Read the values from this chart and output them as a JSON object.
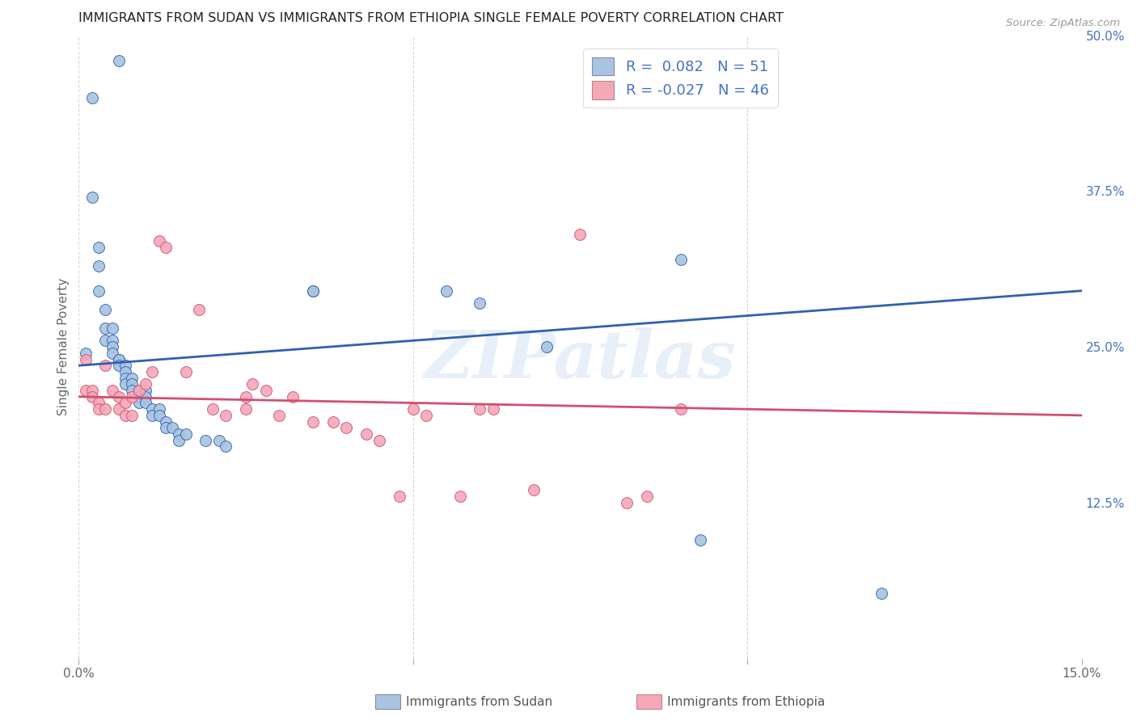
{
  "title": "IMMIGRANTS FROM SUDAN VS IMMIGRANTS FROM ETHIOPIA SINGLE FEMALE POVERTY CORRELATION CHART",
  "source": "Source: ZipAtlas.com",
  "ylabel": "Single Female Poverty",
  "x_min": 0.0,
  "x_max": 0.15,
  "y_min": 0.0,
  "y_max": 0.5,
  "sudan_color": "#a8c4e0",
  "ethiopia_color": "#f4a8b8",
  "sudan_line_color": "#3060b0",
  "ethiopia_line_color": "#d05070",
  "sudan_R": 0.082,
  "sudan_N": 51,
  "ethiopia_R": -0.027,
  "ethiopia_N": 46,
  "legend_label_sudan": "Immigrants from Sudan",
  "legend_label_ethiopia": "Immigrants from Ethiopia",
  "watermark": "ZIPatlas",
  "sudan_x": [
    0.001,
    0.006,
    0.002,
    0.002,
    0.003,
    0.003,
    0.003,
    0.004,
    0.004,
    0.004,
    0.005,
    0.005,
    0.005,
    0.005,
    0.006,
    0.006,
    0.006,
    0.007,
    0.007,
    0.007,
    0.007,
    0.008,
    0.008,
    0.008,
    0.009,
    0.009,
    0.009,
    0.01,
    0.01,
    0.01,
    0.011,
    0.011,
    0.012,
    0.012,
    0.013,
    0.013,
    0.014,
    0.015,
    0.015,
    0.016,
    0.019,
    0.021,
    0.022,
    0.035,
    0.035,
    0.055,
    0.06,
    0.07,
    0.09,
    0.093,
    0.12
  ],
  "sudan_y": [
    0.245,
    0.48,
    0.45,
    0.37,
    0.33,
    0.315,
    0.295,
    0.28,
    0.265,
    0.255,
    0.265,
    0.255,
    0.25,
    0.245,
    0.24,
    0.24,
    0.235,
    0.235,
    0.23,
    0.225,
    0.22,
    0.225,
    0.22,
    0.215,
    0.215,
    0.21,
    0.205,
    0.215,
    0.21,
    0.205,
    0.2,
    0.195,
    0.2,
    0.195,
    0.19,
    0.185,
    0.185,
    0.18,
    0.175,
    0.18,
    0.175,
    0.175,
    0.17,
    0.295,
    0.295,
    0.295,
    0.285,
    0.25,
    0.32,
    0.095,
    0.052
  ],
  "ethiopia_x": [
    0.001,
    0.001,
    0.002,
    0.002,
    0.003,
    0.003,
    0.004,
    0.004,
    0.005,
    0.006,
    0.006,
    0.007,
    0.007,
    0.008,
    0.008,
    0.009,
    0.01,
    0.011,
    0.012,
    0.013,
    0.016,
    0.018,
    0.02,
    0.022,
    0.025,
    0.025,
    0.026,
    0.028,
    0.03,
    0.032,
    0.035,
    0.038,
    0.04,
    0.043,
    0.045,
    0.048,
    0.05,
    0.052,
    0.057,
    0.06,
    0.062,
    0.068,
    0.075,
    0.082,
    0.085,
    0.09
  ],
  "ethiopia_y": [
    0.24,
    0.215,
    0.215,
    0.21,
    0.205,
    0.2,
    0.235,
    0.2,
    0.215,
    0.21,
    0.2,
    0.205,
    0.195,
    0.195,
    0.21,
    0.215,
    0.22,
    0.23,
    0.335,
    0.33,
    0.23,
    0.28,
    0.2,
    0.195,
    0.21,
    0.2,
    0.22,
    0.215,
    0.195,
    0.21,
    0.19,
    0.19,
    0.185,
    0.18,
    0.175,
    0.13,
    0.2,
    0.195,
    0.13,
    0.2,
    0.2,
    0.135,
    0.34,
    0.125,
    0.13,
    0.2
  ]
}
